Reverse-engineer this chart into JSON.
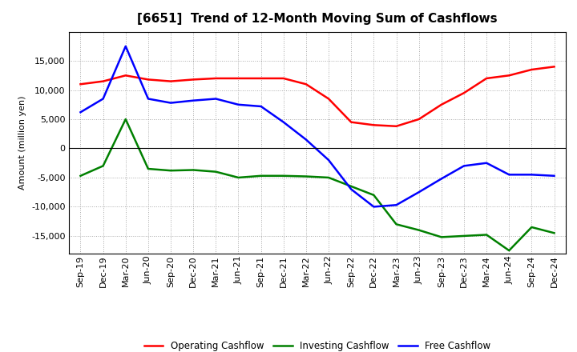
{
  "title": "[6651]  Trend of 12-Month Moving Sum of Cashflows",
  "xlabel": "",
  "ylabel": "Amount (million yen)",
  "ylim": [
    -18000,
    20000
  ],
  "yticks": [
    -15000,
    -10000,
    -5000,
    0,
    5000,
    10000,
    15000
  ],
  "x_labels": [
    "Sep-19",
    "Dec-19",
    "Mar-20",
    "Jun-20",
    "Sep-20",
    "Dec-20",
    "Mar-21",
    "Jun-21",
    "Sep-21",
    "Dec-21",
    "Mar-22",
    "Jun-22",
    "Sep-22",
    "Dec-22",
    "Mar-23",
    "Jun-23",
    "Sep-23",
    "Dec-23",
    "Mar-24",
    "Jun-24",
    "Sep-24",
    "Dec-24"
  ],
  "operating": [
    11000,
    11500,
    12500,
    11800,
    11500,
    11800,
    12000,
    12000,
    12000,
    12000,
    11000,
    8500,
    4500,
    4000,
    3800,
    5000,
    7500,
    9500,
    12000,
    12500,
    13500,
    14000
  ],
  "investing": [
    -4700,
    -3000,
    5000,
    -3500,
    -3800,
    -3700,
    -4000,
    -5000,
    -4700,
    -4700,
    -4800,
    -5000,
    -6500,
    -8000,
    -13000,
    -14000,
    -15200,
    -15000,
    -14800,
    -17500,
    -13500,
    -14500
  ],
  "free": [
    6200,
    8500,
    17500,
    8500,
    7800,
    8200,
    8500,
    7500,
    7200,
    4500,
    1500,
    -2000,
    -7000,
    -10000,
    -9700,
    -7500,
    -5200,
    -3000,
    -2500,
    -4500,
    -4500,
    -4700
  ],
  "op_color": "#ff0000",
  "inv_color": "#008000",
  "free_color": "#0000ff",
  "legend_labels": [
    "Operating Cashflow",
    "Investing Cashflow",
    "Free Cashflow"
  ],
  "bg_color": "#ffffff",
  "grid_color": "#aaaaaa",
  "linewidth": 1.8,
  "title_fontsize": 11,
  "axis_fontsize": 8,
  "ylabel_fontsize": 8
}
